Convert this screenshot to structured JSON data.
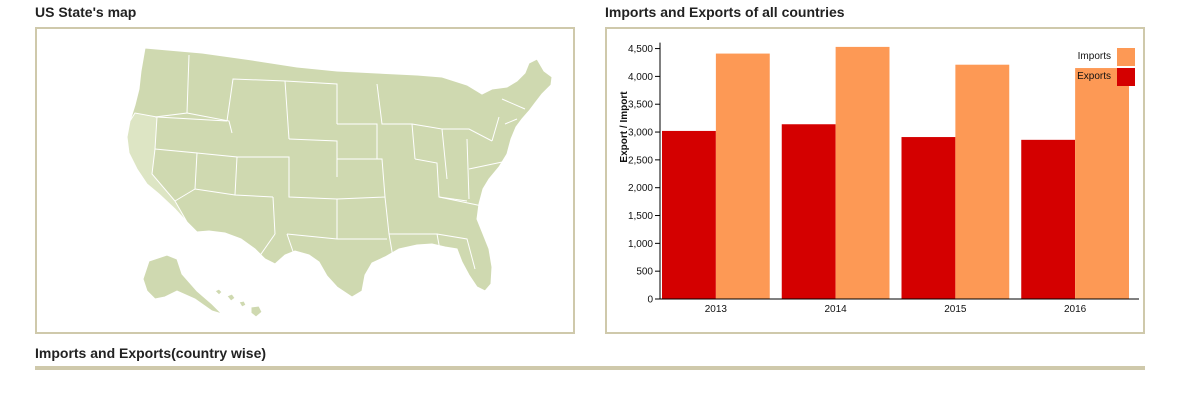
{
  "map_panel": {
    "title": "US State's map"
  },
  "chart_panel": {
    "title": "Imports and Exports of all countries"
  },
  "country_panel": {
    "title": "Imports and Exports(country wise)"
  },
  "colors": {
    "map_fill": "#cfd9b0",
    "map_fill_light": "#dde5c4",
    "map_stroke": "#ffffff",
    "panel_border": "#cfc9ab",
    "imports": "#fd9955",
    "exports": "#d40000"
  },
  "chart_data": {
    "type": "bar",
    "categories": [
      "2013",
      "2014",
      "2015",
      "2016"
    ],
    "series": [
      {
        "name": "Exports",
        "values": [
          3020,
          3140,
          2910,
          2860
        ]
      },
      {
        "name": "Imports",
        "values": [
          4410,
          4530,
          4210,
          4150
        ]
      }
    ],
    "ylabel": "Export / Import",
    "ylim": [
      0,
      4600
    ],
    "yticks": [
      0,
      500,
      1000,
      1500,
      2000,
      2500,
      3000,
      3500,
      4000,
      4500
    ],
    "ytick_labels": [
      "0",
      "500",
      "1,000",
      "1,500",
      "2,000",
      "2,500",
      "3,000",
      "3,500",
      "4,000",
      "4,500"
    ],
    "legend": {
      "position": "top-right",
      "items": [
        {
          "label": "Imports",
          "color": "#fd9955"
        },
        {
          "label": "Exports",
          "color": "#d40000"
        }
      ]
    }
  }
}
